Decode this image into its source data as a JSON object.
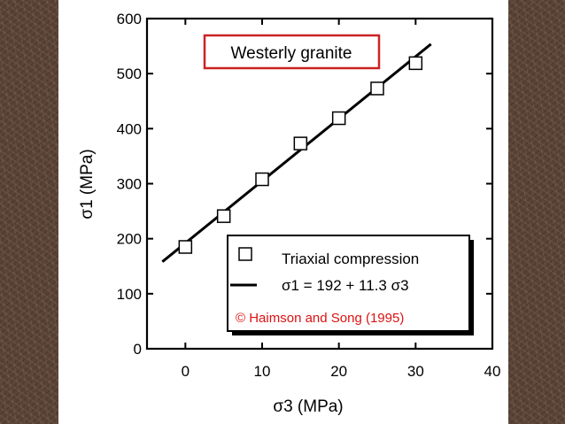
{
  "colors": {
    "wood_background": "#5a4336",
    "title_box_border": "#cc2222",
    "copyright_text": "#dd1111",
    "data_color": "#000000"
  },
  "chart_data": {
    "type": "scatter",
    "title": "Westerly granite",
    "xlabel": "σ3 (MPa)",
    "ylabel": "σ1 (MPa)",
    "xlim": [
      -5,
      40
    ],
    "ylim": [
      0,
      600
    ],
    "xticks": [
      "0",
      "10",
      "20",
      "30",
      "40"
    ],
    "yticks": [
      "0",
      "100",
      "200",
      "300",
      "400",
      "500",
      "600"
    ],
    "grid": false,
    "legend_placement": "bottom-right",
    "series": [
      {
        "name": "Triaxial compression",
        "marker": "open-square",
        "x": [
          0,
          5,
          10,
          15,
          20,
          25,
          30
        ],
        "y": [
          185,
          241,
          308,
          373,
          419,
          473,
          519
        ]
      }
    ],
    "fit": {
      "name": "σ1 = 192 + 11.3 σ3",
      "intercept": 192,
      "slope": 11.3,
      "x_range": [
        -3,
        32
      ]
    },
    "annotations": [
      "© Haimson and Song (1995)"
    ]
  }
}
